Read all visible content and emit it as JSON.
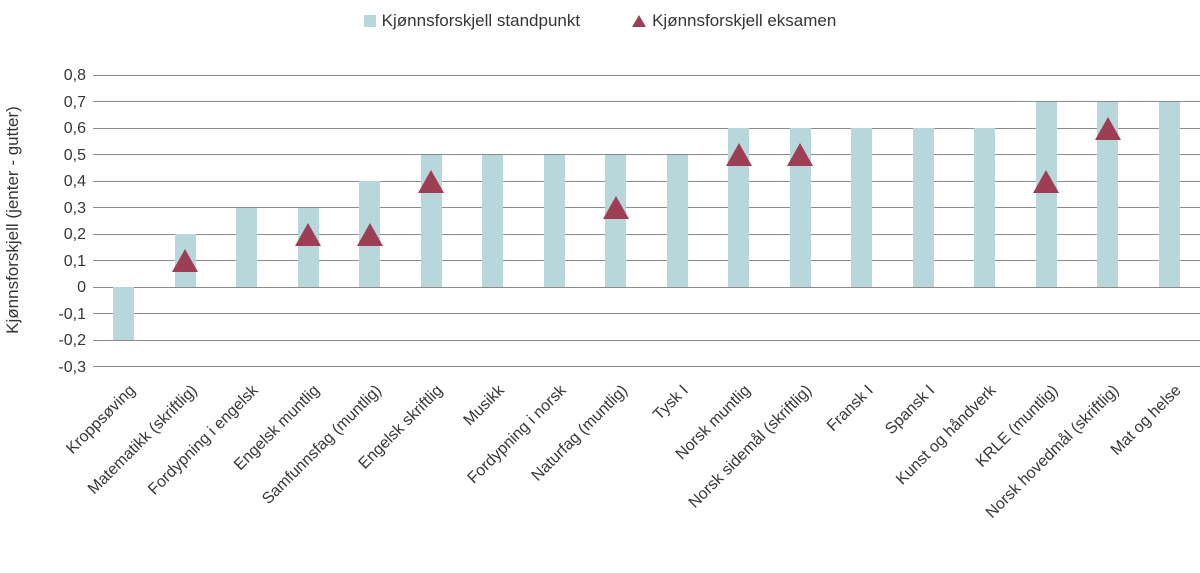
{
  "legend": {
    "standpunkt": "Kjønnsforskjell standpunkt",
    "eksamen": "Kjønnsforskjell eksamen"
  },
  "colors": {
    "bar": "#b7d7db",
    "marker": "#9d3e54",
    "gridline": "#8a8a8a",
    "text": "#363636"
  },
  "chart_data": {
    "type": "bar",
    "title": "",
    "xlabel": "",
    "ylabel": "Kjønnsforskjell (jenter - gutter)",
    "ylim": [
      -0.3,
      0.8
    ],
    "grid": "horizontal",
    "legend_position": "top",
    "ytick_values": [
      0.8,
      0.7,
      0.6,
      0.5,
      0.4,
      0.3,
      0.2,
      0.1,
      0,
      -0.1,
      -0.2,
      -0.3
    ],
    "ytick_labels": [
      "0,8",
      "0,7",
      "0,6",
      "0,5",
      "0,4",
      "0,3",
      "0,2",
      "0,1",
      "0",
      "-0,1",
      "-0,2",
      "-0,3"
    ],
    "categories": [
      "Kroppsøving",
      "Matematikk (skriftlig)",
      "Fordypning i engelsk",
      "Engelsk muntlig",
      "Samfunnsfag (muntlig)",
      "Engelsk skriftlig",
      "Musikk",
      "Fordypning i norsk",
      "Naturfag (muntlig)",
      "Tysk I",
      "Norsk muntlig",
      "Norsk sidemål (skriftlig)",
      "Fransk I",
      "Spansk I",
      "Kunst og håndverk",
      "KRLE (muntlig)",
      "Norsk hovedmål (skriftlig)",
      "Mat og helse"
    ],
    "series": [
      {
        "name": "Kjønnsforskjell standpunkt",
        "mark": "bar",
        "values": [
          -0.2,
          0.2,
          0.3,
          0.3,
          0.4,
          0.5,
          0.5,
          0.5,
          0.5,
          0.5,
          0.6,
          0.6,
          0.6,
          0.6,
          0.6,
          0.7,
          0.7,
          0.7
        ]
      },
      {
        "name": "Kjønnsforskjell eksamen",
        "mark": "triangle",
        "values": [
          null,
          0.1,
          null,
          0.2,
          0.2,
          0.4,
          null,
          null,
          0.3,
          null,
          0.5,
          0.5,
          null,
          null,
          null,
          0.4,
          0.6,
          null
        ]
      }
    ]
  }
}
